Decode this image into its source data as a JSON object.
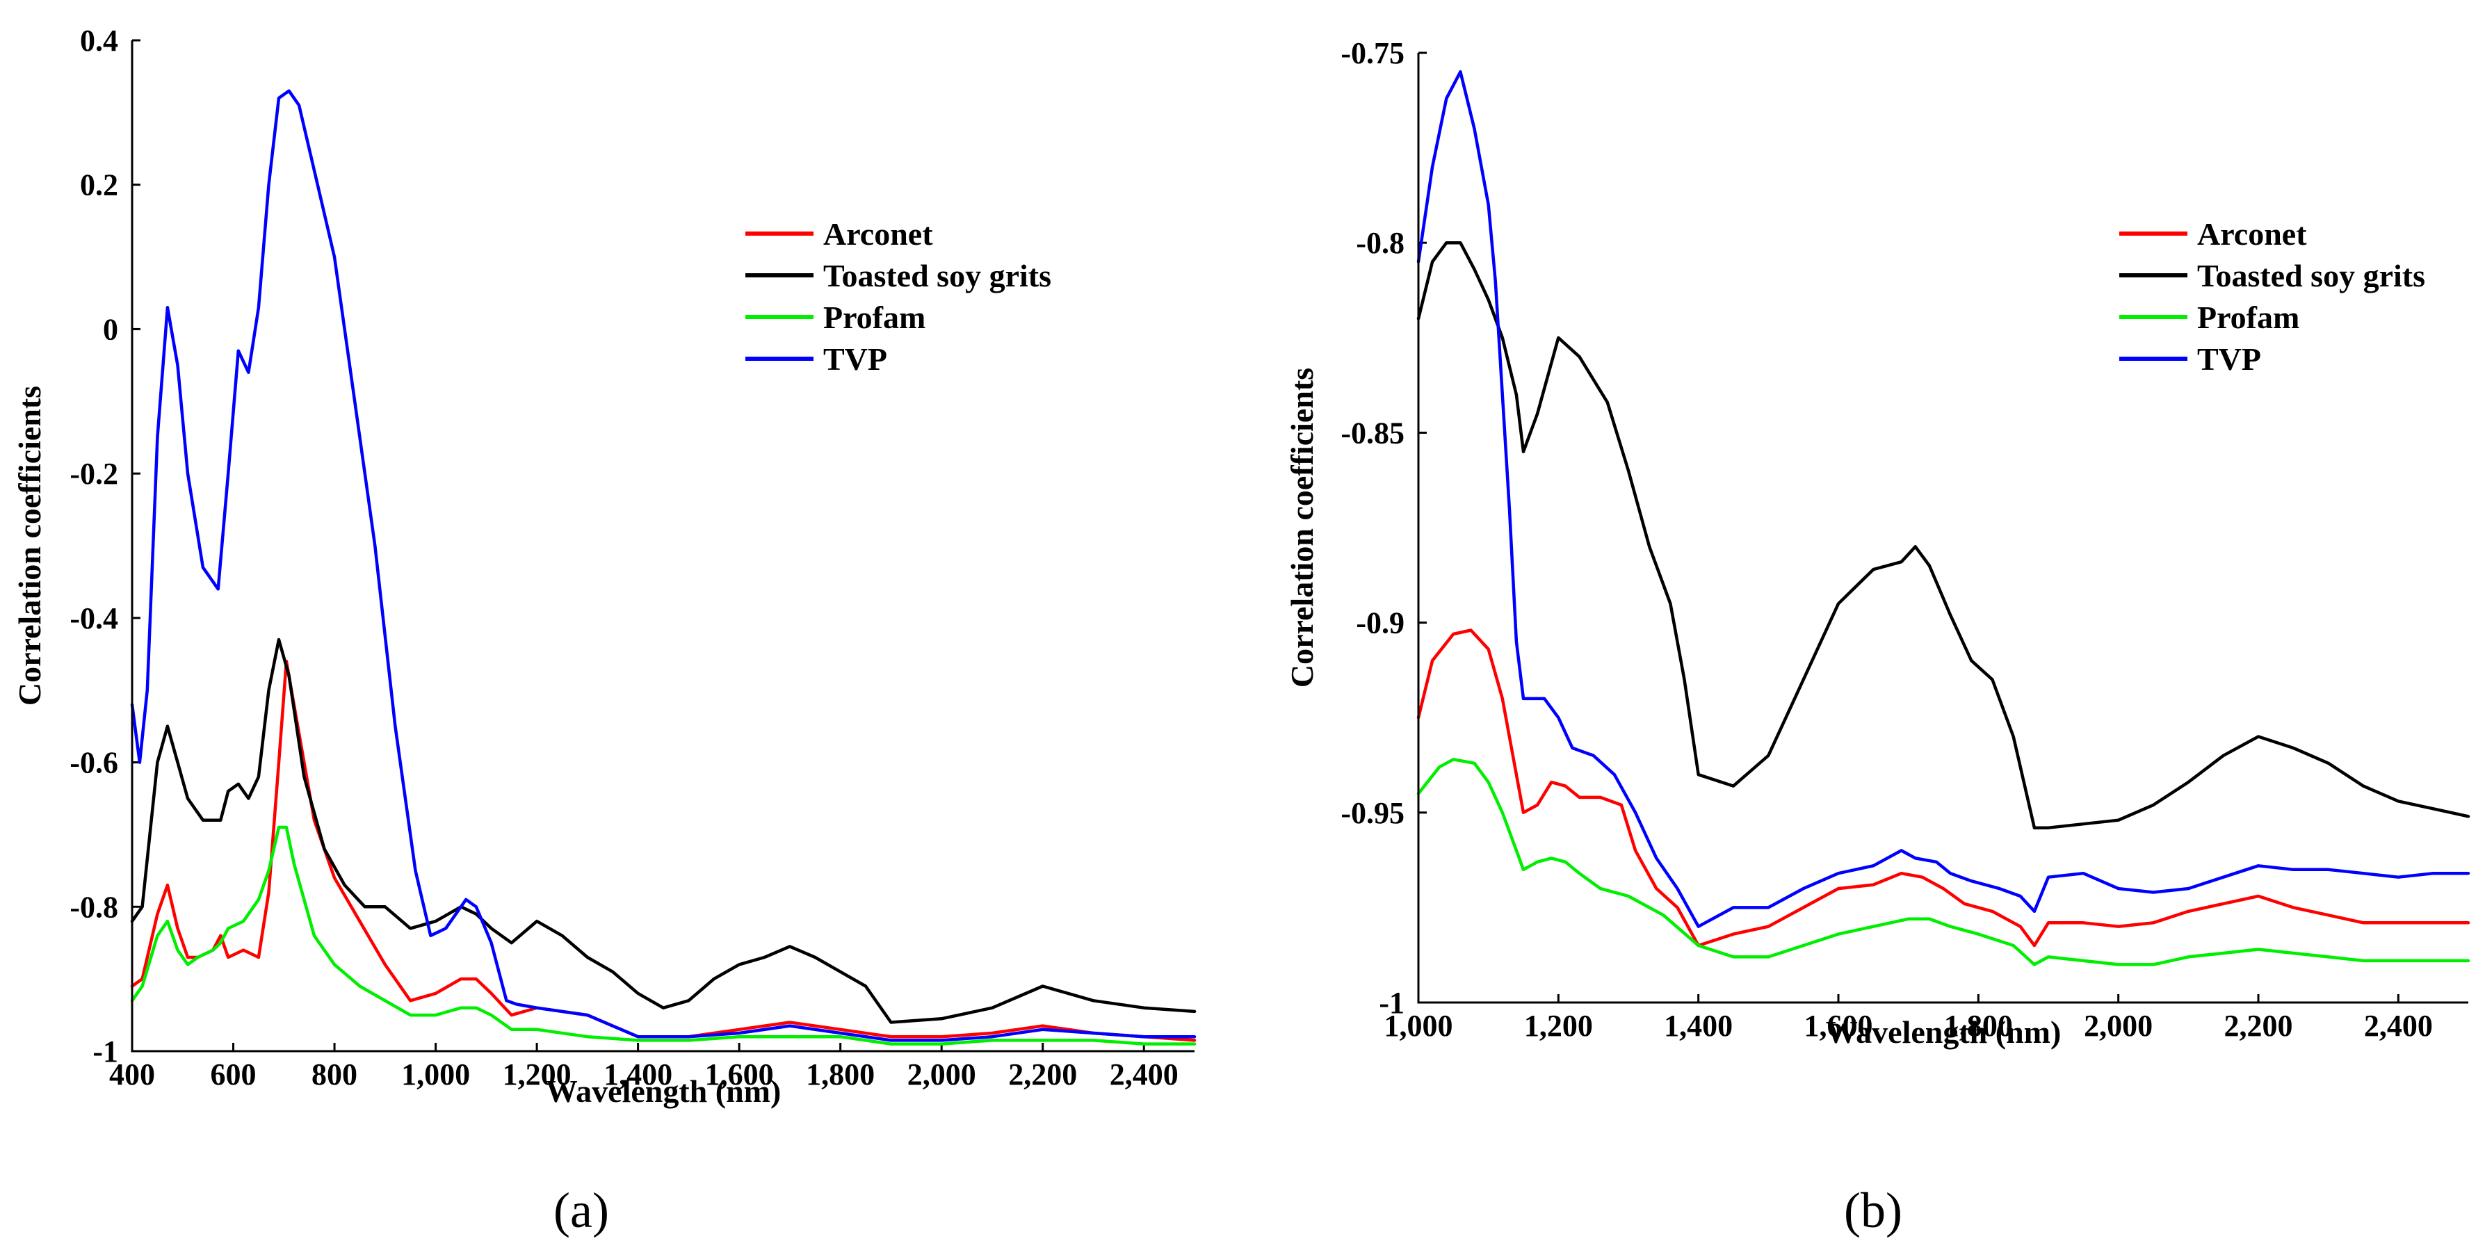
{
  "chart_data": [
    {
      "type": "line",
      "panel": "(a)",
      "xlabel": "Wavelength (nm)",
      "ylabel": "Correlation coefficients",
      "xlim": [
        400,
        2500
      ],
      "ylim": [
        -1,
        0.4
      ],
      "xticks": [
        400,
        600,
        800,
        1000,
        1200,
        1400,
        1600,
        1800,
        2000,
        2200,
        2400
      ],
      "xtick_labels": [
        "400",
        "600",
        "800",
        "1,000",
        "1,200",
        "1,400",
        "1,600",
        "1,800",
        "2,000",
        "2,200",
        "2,400"
      ],
      "yticks": [
        -1,
        -0.8,
        -0.6,
        -0.4,
        -0.2,
        0,
        0.2,
        0.4
      ],
      "ytick_labels": [
        "-1",
        "-0.8",
        "-0.6",
        "-0.4",
        "-0.2",
        "0",
        "0.2",
        "0.4"
      ],
      "legend_position": "top-right",
      "series": [
        {
          "name": "Arconet",
          "color": "#ff0000",
          "x": [
            400,
            420,
            450,
            470,
            490,
            510,
            530,
            560,
            575,
            590,
            620,
            650,
            670,
            690,
            705,
            720,
            760,
            800,
            850,
            900,
            950,
            1000,
            1050,
            1080,
            1110,
            1150,
            1200,
            1300,
            1400,
            1500,
            1600,
            1700,
            1800,
            1900,
            2000,
            2100,
            2200,
            2300,
            2400,
            2500
          ],
          "y": [
            -0.91,
            -0.9,
            -0.81,
            -0.77,
            -0.83,
            -0.87,
            -0.87,
            -0.86,
            -0.84,
            -0.87,
            -0.86,
            -0.87,
            -0.78,
            -0.6,
            -0.46,
            -0.52,
            -0.68,
            -0.76,
            -0.82,
            -0.88,
            -0.93,
            -0.92,
            -0.9,
            -0.9,
            -0.92,
            -0.95,
            -0.94,
            -0.95,
            -0.98,
            -0.98,
            -0.97,
            -0.96,
            -0.97,
            -0.98,
            -0.98,
            -0.975,
            -0.965,
            -0.975,
            -0.98,
            -0.985
          ]
        },
        {
          "name": "Toasted soy grits",
          "color": "#000000",
          "x": [
            400,
            420,
            450,
            470,
            490,
            510,
            540,
            560,
            575,
            590,
            610,
            630,
            650,
            670,
            690,
            710,
            740,
            780,
            820,
            860,
            900,
            950,
            1000,
            1050,
            1080,
            1110,
            1150,
            1200,
            1250,
            1300,
            1350,
            1400,
            1450,
            1500,
            1550,
            1600,
            1650,
            1700,
            1750,
            1800,
            1850,
            1900,
            2000,
            2100,
            2200,
            2300,
            2400,
            2500
          ],
          "y": [
            -0.82,
            -0.8,
            -0.6,
            -0.55,
            -0.6,
            -0.65,
            -0.68,
            -0.68,
            -0.68,
            -0.64,
            -0.63,
            -0.65,
            -0.62,
            -0.5,
            -0.43,
            -0.48,
            -0.62,
            -0.72,
            -0.77,
            -0.8,
            -0.8,
            -0.83,
            -0.82,
            -0.8,
            -0.81,
            -0.83,
            -0.85,
            -0.82,
            -0.84,
            -0.87,
            -0.89,
            -0.92,
            -0.94,
            -0.93,
            -0.9,
            -0.88,
            -0.87,
            -0.855,
            -0.87,
            -0.89,
            -0.91,
            -0.96,
            -0.955,
            -0.94,
            -0.91,
            -0.93,
            -0.94,
            -0.945
          ]
        },
        {
          "name": "Profam",
          "color": "#00ee00",
          "x": [
            400,
            420,
            450,
            470,
            490,
            510,
            530,
            560,
            575,
            590,
            620,
            650,
            670,
            690,
            705,
            720,
            760,
            800,
            850,
            900,
            950,
            1000,
            1050,
            1080,
            1110,
            1150,
            1200,
            1300,
            1400,
            1500,
            1600,
            1700,
            1800,
            1900,
            2000,
            2100,
            2200,
            2300,
            2400,
            2500
          ],
          "y": [
            -0.93,
            -0.91,
            -0.84,
            -0.82,
            -0.86,
            -0.88,
            -0.87,
            -0.86,
            -0.85,
            -0.83,
            -0.82,
            -0.79,
            -0.75,
            -0.69,
            -0.69,
            -0.74,
            -0.84,
            -0.88,
            -0.91,
            -0.93,
            -0.95,
            -0.95,
            -0.94,
            -0.94,
            -0.95,
            -0.97,
            -0.97,
            -0.98,
            -0.985,
            -0.985,
            -0.98,
            -0.98,
            -0.98,
            -0.99,
            -0.99,
            -0.985,
            -0.985,
            -0.985,
            -0.99,
            -0.99
          ]
        },
        {
          "name": "TVP",
          "color": "#0000ff",
          "x": [
            400,
            415,
            430,
            450,
            470,
            490,
            510,
            540,
            570,
            590,
            610,
            630,
            650,
            670,
            690,
            710,
            730,
            760,
            800,
            840,
            880,
            920,
            960,
            990,
            1020,
            1060,
            1080,
            1110,
            1140,
            1160,
            1200,
            1300,
            1400,
            1500,
            1600,
            1700,
            1800,
            1900,
            2000,
            2100,
            2200,
            2300,
            2400,
            2500
          ],
          "y": [
            -0.52,
            -0.6,
            -0.5,
            -0.15,
            0.03,
            -0.05,
            -0.2,
            -0.33,
            -0.36,
            -0.2,
            -0.03,
            -0.06,
            0.03,
            0.2,
            0.32,
            0.33,
            0.31,
            0.22,
            0.1,
            -0.1,
            -0.3,
            -0.55,
            -0.75,
            -0.84,
            -0.83,
            -0.79,
            -0.8,
            -0.85,
            -0.93,
            -0.935,
            -0.94,
            -0.95,
            -0.98,
            -0.98,
            -0.975,
            -0.965,
            -0.975,
            -0.985,
            -0.985,
            -0.98,
            -0.97,
            -0.975,
            -0.98,
            -0.98
          ]
        }
      ]
    },
    {
      "type": "line",
      "panel": "(b)",
      "xlabel": "Wavelength (nm)",
      "ylabel": "Correlation coefficients",
      "xlim": [
        1000,
        2500
      ],
      "ylim": [
        -1,
        -0.75
      ],
      "xticks": [
        1000,
        1200,
        1400,
        1600,
        1800,
        2000,
        2200,
        2400
      ],
      "xtick_labels": [
        "1,000",
        "1,200",
        "1,400",
        "1,600",
        "1,800",
        "2,000",
        "2,200",
        "2,400"
      ],
      "yticks": [
        -1,
        -0.95,
        -0.9,
        -0.85,
        -0.8,
        -0.75
      ],
      "ytick_labels": [
        "-1",
        "-0.95",
        "-0.9",
        "-0.85",
        "-0.8",
        "-0.75"
      ],
      "legend_position": "top-right",
      "series": [
        {
          "name": "Arconet",
          "color": "#ff0000",
          "x": [
            1000,
            1020,
            1050,
            1075,
            1100,
            1120,
            1140,
            1150,
            1170,
            1190,
            1210,
            1230,
            1260,
            1290,
            1310,
            1340,
            1370,
            1400,
            1450,
            1500,
            1550,
            1600,
            1650,
            1690,
            1720,
            1750,
            1780,
            1820,
            1860,
            1880,
            1900,
            1950,
            2000,
            2050,
            2100,
            2150,
            2200,
            2250,
            2300,
            2350,
            2400,
            2450,
            2500
          ],
          "y": [
            -0.925,
            -0.91,
            -0.903,
            -0.902,
            -0.907,
            -0.92,
            -0.94,
            -0.95,
            -0.948,
            -0.942,
            -0.943,
            -0.946,
            -0.946,
            -0.948,
            -0.96,
            -0.97,
            -0.975,
            -0.985,
            -0.982,
            -0.98,
            -0.975,
            -0.97,
            -0.969,
            -0.966,
            -0.967,
            -0.97,
            -0.974,
            -0.976,
            -0.98,
            -0.985,
            -0.979,
            -0.979,
            -0.98,
            -0.979,
            -0.976,
            -0.974,
            -0.972,
            -0.975,
            -0.977,
            -0.979,
            -0.979,
            -0.979,
            -0.979
          ]
        },
        {
          "name": "Toasted soy grits",
          "color": "#000000",
          "x": [
            1000,
            1020,
            1040,
            1060,
            1080,
            1100,
            1120,
            1140,
            1150,
            1170,
            1200,
            1230,
            1270,
            1300,
            1330,
            1360,
            1380,
            1400,
            1450,
            1500,
            1550,
            1600,
            1650,
            1690,
            1710,
            1730,
            1760,
            1790,
            1820,
            1850,
            1880,
            1900,
            1950,
            2000,
            2050,
            2100,
            2150,
            2200,
            2250,
            2300,
            2350,
            2400,
            2450,
            2500
          ],
          "y": [
            -0.82,
            -0.805,
            -0.8,
            -0.8,
            -0.807,
            -0.815,
            -0.825,
            -0.84,
            -0.855,
            -0.845,
            -0.825,
            -0.83,
            -0.842,
            -0.86,
            -0.88,
            -0.895,
            -0.915,
            -0.94,
            -0.943,
            -0.935,
            -0.915,
            -0.895,
            -0.886,
            -0.884,
            -0.88,
            -0.885,
            -0.898,
            -0.91,
            -0.915,
            -0.93,
            -0.954,
            -0.954,
            -0.953,
            -0.952,
            -0.948,
            -0.942,
            -0.935,
            -0.93,
            -0.933,
            -0.937,
            -0.943,
            -0.947,
            -0.949,
            -0.951
          ]
        },
        {
          "name": "Profam",
          "color": "#00ee00",
          "x": [
            1000,
            1030,
            1050,
            1080,
            1100,
            1120,
            1140,
            1150,
            1170,
            1190,
            1210,
            1230,
            1260,
            1300,
            1350,
            1400,
            1450,
            1500,
            1550,
            1600,
            1650,
            1700,
            1730,
            1760,
            1800,
            1850,
            1880,
            1900,
            1950,
            2000,
            2050,
            2100,
            2150,
            2200,
            2250,
            2300,
            2350,
            2400,
            2450,
            2500
          ],
          "y": [
            -0.945,
            -0.938,
            -0.936,
            -0.937,
            -0.942,
            -0.95,
            -0.96,
            -0.965,
            -0.963,
            -0.962,
            -0.963,
            -0.966,
            -0.97,
            -0.972,
            -0.977,
            -0.985,
            -0.988,
            -0.988,
            -0.985,
            -0.982,
            -0.98,
            -0.978,
            -0.978,
            -0.98,
            -0.982,
            -0.985,
            -0.99,
            -0.988,
            -0.989,
            -0.99,
            -0.99,
            -0.988,
            -0.987,
            -0.986,
            -0.987,
            -0.988,
            -0.989,
            -0.989,
            -0.989,
            -0.989
          ]
        },
        {
          "name": "TVP",
          "color": "#0000ff",
          "x": [
            1000,
            1020,
            1040,
            1060,
            1080,
            1100,
            1110,
            1120,
            1130,
            1140,
            1150,
            1160,
            1180,
            1200,
            1220,
            1250,
            1280,
            1310,
            1340,
            1370,
            1400,
            1450,
            1500,
            1550,
            1600,
            1650,
            1690,
            1710,
            1740,
            1760,
            1790,
            1830,
            1860,
            1880,
            1900,
            1950,
            2000,
            2050,
            2100,
            2150,
            2200,
            2250,
            2300,
            2350,
            2400,
            2450,
            2500
          ],
          "y": [
            -0.805,
            -0.78,
            -0.762,
            -0.755,
            -0.77,
            -0.79,
            -0.81,
            -0.84,
            -0.87,
            -0.905,
            -0.92,
            -0.92,
            -0.92,
            -0.925,
            -0.933,
            -0.935,
            -0.94,
            -0.95,
            -0.962,
            -0.97,
            -0.98,
            -0.975,
            -0.975,
            -0.97,
            -0.966,
            -0.964,
            -0.96,
            -0.962,
            -0.963,
            -0.966,
            -0.968,
            -0.97,
            -0.972,
            -0.976,
            -0.967,
            -0.966,
            -0.97,
            -0.971,
            -0.97,
            -0.967,
            -0.964,
            -0.965,
            -0.965,
            -0.966,
            -0.967,
            -0.966,
            -0.966
          ]
        }
      ]
    }
  ]
}
